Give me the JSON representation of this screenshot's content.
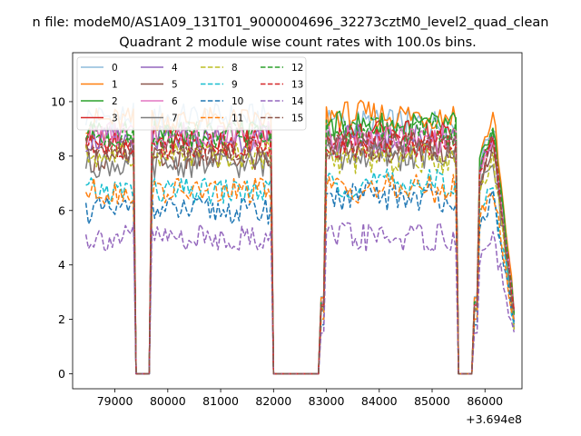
{
  "chart_data": {
    "type": "line",
    "suptitle": "n file: modeM0/AS1A09_131T01_9000004696_32273cztM0_level2_quad_clean",
    "title": "Quadrant 2 module wise count rates with 100.0s bins.",
    "xlabel": "",
    "ylabel": "",
    "x_offset_label": "+3.694e8",
    "xlim": [
      78200,
      86700
    ],
    "ylim": [
      -0.55,
      11.8
    ],
    "xticks": [
      79000,
      80000,
      81000,
      82000,
      83000,
      84000,
      85000,
      86000
    ],
    "yticks": [
      0,
      2,
      4,
      6,
      8,
      10
    ],
    "grid": false,
    "legend": {
      "placement": "top-left",
      "columns": 4
    },
    "series": [
      {
        "name": "0",
        "color": "#8dbbdb",
        "dash": "solid",
        "base": 9.45,
        "late": 9.2
      },
      {
        "name": "1",
        "color": "#ff7f0e",
        "dash": "solid",
        "base": 9.3,
        "late": 9.5
      },
      {
        "name": "2",
        "color": "#2ca02c",
        "dash": "solid",
        "base": 8.8,
        "late": 9.1
      },
      {
        "name": "3",
        "color": "#d62728",
        "dash": "solid",
        "base": 8.6,
        "late": 8.8
      },
      {
        "name": "4",
        "color": "#9467bd",
        "dash": "solid",
        "base": 8.6,
        "late": 8.7
      },
      {
        "name": "5",
        "color": "#8c564b",
        "dash": "solid",
        "base": 7.9,
        "late": 8.3
      },
      {
        "name": "6",
        "color": "#e377c2",
        "dash": "solid",
        "base": 8.8,
        "late": 8.6
      },
      {
        "name": "7",
        "color": "#7f7f7f",
        "dash": "solid",
        "base": 7.7,
        "late": 8.0
      },
      {
        "name": "8",
        "color": "#bcbd22",
        "dash": "dashed",
        "base": 8.0,
        "late": 7.9
      },
      {
        "name": "9",
        "color": "#17becf",
        "dash": "dashed",
        "base": 6.7,
        "late": 7.0
      },
      {
        "name": "10",
        "color": "#1f77b4",
        "dash": "dashed",
        "base": 6.0,
        "late": 6.5
      },
      {
        "name": "11",
        "color": "#ff7f0e",
        "dash": "dashed",
        "base": 6.7,
        "late": 6.8
      },
      {
        "name": "12",
        "color": "#2ca02c",
        "dash": "dashed",
        "base": 8.8,
        "late": 8.9
      },
      {
        "name": "13",
        "color": "#d62728",
        "dash": "dashed",
        "base": 8.4,
        "late": 8.5
      },
      {
        "name": "14",
        "color": "#9467bd",
        "dash": "dashed",
        "base": 5.0,
        "late": 5.0
      },
      {
        "name": "15",
        "color": "#8c564b",
        "dash": "dashed",
        "base": 8.2,
        "late": 8.4
      }
    ],
    "segments": [
      {
        "start": 78450,
        "end": 79350,
        "level": "base"
      },
      {
        "start": 79400,
        "end": 79450,
        "level": "drop"
      },
      {
        "start": 79500,
        "end": 79650,
        "level": "zero"
      },
      {
        "start": 79700,
        "end": 81950,
        "level": "base"
      },
      {
        "start": 82000,
        "end": 82050,
        "level": "drop"
      },
      {
        "start": 82100,
        "end": 82850,
        "level": "zero"
      },
      {
        "start": 82900,
        "end": 82950,
        "level": "rise"
      },
      {
        "start": 83000,
        "end": 85450,
        "level": "late"
      },
      {
        "start": 85500,
        "end": 85550,
        "level": "drop"
      },
      {
        "start": 85600,
        "end": 85750,
        "level": "zero"
      },
      {
        "start": 85800,
        "end": 85850,
        "level": "rise"
      },
      {
        "start": 85900,
        "end": 86550,
        "level": "tail"
      }
    ]
  }
}
